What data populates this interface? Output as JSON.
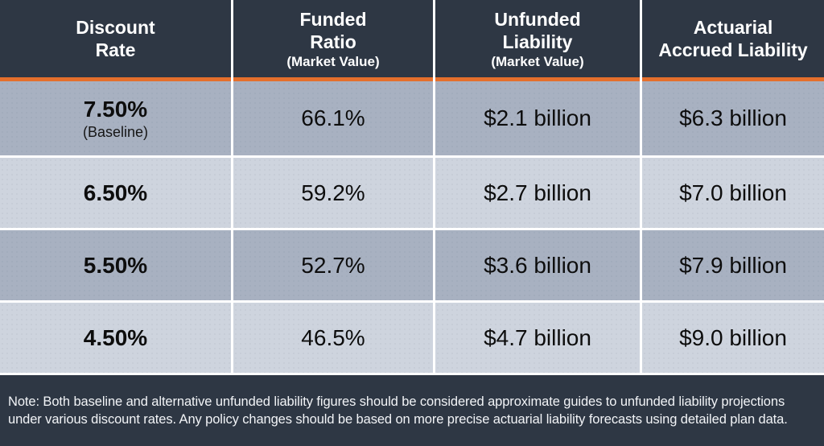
{
  "colors": {
    "header_bg": "#2e3744",
    "footer_bg": "#2e3744",
    "accent_orange": "#e56f2c",
    "row_dark": "#a8b1c1",
    "row_light": "#ced4de",
    "divider_white": "#ffffff",
    "header_text": "#ffffff",
    "body_text": "#0d0d0d"
  },
  "table": {
    "columns": [
      {
        "line1": "Discount",
        "line2": "Rate",
        "subtitle": ""
      },
      {
        "line1": "Funded",
        "line2": "Ratio",
        "subtitle": "(Market Value)"
      },
      {
        "line1": "Unfunded",
        "line2": "Liability",
        "subtitle": "(Market Value)"
      },
      {
        "line1": "Actuarial",
        "line2": "Accrued Liability",
        "subtitle": ""
      }
    ],
    "rows": [
      {
        "rate": "7.50%",
        "rate_note": "(Baseline)",
        "funded_ratio": "66.1%",
        "unfunded_liability": "$2.1 billion",
        "accrued_liability": "$6.3 billion"
      },
      {
        "rate": "6.50%",
        "rate_note": "",
        "funded_ratio": "59.2%",
        "unfunded_liability": "$2.7 billion",
        "accrued_liability": "$7.0 billion"
      },
      {
        "rate": "5.50%",
        "rate_note": "",
        "funded_ratio": "52.7%",
        "unfunded_liability": "$3.6 billion",
        "accrued_liability": "$7.9 billion"
      },
      {
        "rate": "4.50%",
        "rate_note": "",
        "funded_ratio": "46.5%",
        "unfunded_liability": "$4.7 billion",
        "accrued_liability": "$9.0 billion"
      }
    ]
  },
  "note": "Note: Both baseline and alternative unfunded liability figures should be considered approximate guides to unfunded liability projections under various discount rates. Any policy changes should be based on more precise actuarial liability forecasts using detailed plan data.",
  "chart_data": {
    "type": "table",
    "title": "",
    "columns": [
      "Discount Rate",
      "Funded Ratio (Market Value)",
      "Unfunded Liability (Market Value)",
      "Actuarial Accrued Liability"
    ],
    "rows": [
      [
        "7.50% (Baseline)",
        "66.1%",
        "$2.1 billion",
        "$6.3 billion"
      ],
      [
        "6.50%",
        "59.2%",
        "$2.7 billion",
        "$7.0 billion"
      ],
      [
        "5.50%",
        "52.7%",
        "$3.6 billion",
        "$7.9 billion"
      ],
      [
        "4.50%",
        "46.5%",
        "$4.7 billion",
        "$9.0 billion"
      ]
    ],
    "discount_rates_pct": [
      7.5,
      6.5,
      5.5,
      4.5
    ],
    "funded_ratio_pct": [
      66.1,
      59.2,
      52.7,
      46.5
    ],
    "unfunded_liability_billions": [
      2.1,
      2.7,
      3.6,
      4.7
    ],
    "actuarial_accrued_liability_billions": [
      6.3,
      7.0,
      7.9,
      9.0
    ],
    "note": "Note: Both baseline and alternative unfunded liability figures should be considered approximate guides to unfunded liability projections under various discount rates. Any policy changes should be based on more precise actuarial liability forecasts using detailed plan data."
  }
}
